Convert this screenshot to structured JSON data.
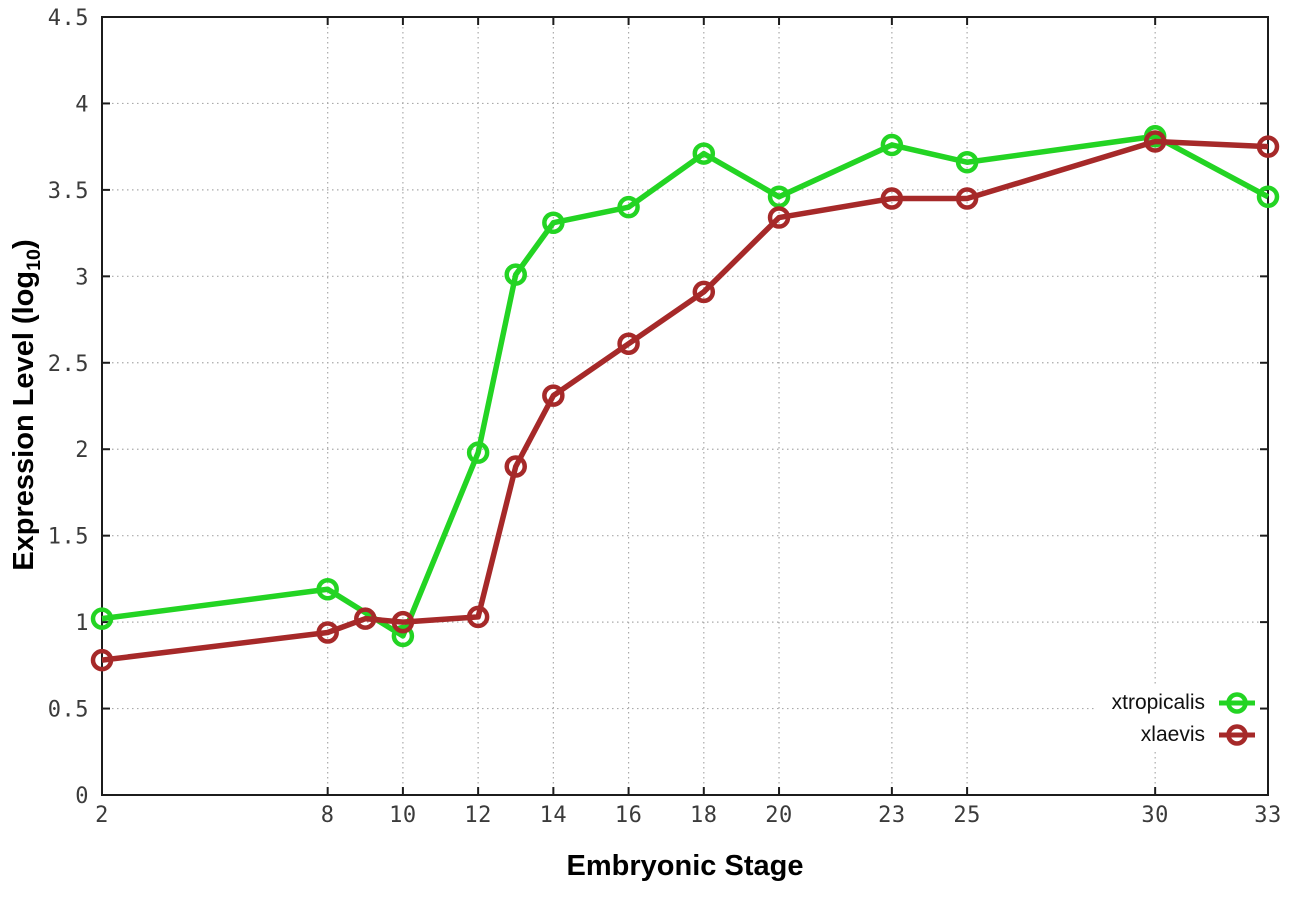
{
  "page": {
    "background": "#ffffff"
  },
  "chart_data": {
    "type": "line",
    "title": "",
    "xlabel": "Embryonic Stage",
    "ylabel": "Expression Level (log10)",
    "ylabel_parts": {
      "main": "Expression Level (log",
      "sub": "10",
      "end": ")"
    },
    "xlim": [
      2,
      33
    ],
    "ylim": [
      0,
      4.5
    ],
    "grid": {
      "visible": true,
      "style": "dotted",
      "color": "#aaaaaa"
    },
    "axis_color": "#1c1c1c",
    "tick_label_color": "#3b3b3b",
    "legend_position": "bottom-right",
    "x_ticks": [
      {
        "v": 2,
        "label": "2"
      },
      {
        "v": 8,
        "label": "8"
      },
      {
        "v": 10,
        "label": "10"
      },
      {
        "v": 12,
        "label": "12"
      },
      {
        "v": 14,
        "label": "14"
      },
      {
        "v": 16,
        "label": "16"
      },
      {
        "v": 18,
        "label": "18"
      },
      {
        "v": 20,
        "label": "20"
      },
      {
        "v": 23,
        "label": "23"
      },
      {
        "v": 25,
        "label": "25"
      },
      {
        "v": 30,
        "label": "30"
      },
      {
        "v": 33,
        "label": "33"
      }
    ],
    "y_ticks": [
      {
        "v": 0,
        "label": "0"
      },
      {
        "v": 0.5,
        "label": "0.5"
      },
      {
        "v": 1,
        "label": "1"
      },
      {
        "v": 1.5,
        "label": "1.5"
      },
      {
        "v": 2,
        "label": "2"
      },
      {
        "v": 2.5,
        "label": "2.5"
      },
      {
        "v": 3,
        "label": "3"
      },
      {
        "v": 3.5,
        "label": "3.5"
      },
      {
        "v": 4,
        "label": "4"
      },
      {
        "v": 4.5,
        "label": "4.5"
      }
    ],
    "series": [
      {
        "name": "xtropicalis",
        "color": "#23d423",
        "marker": "open-circle",
        "points": [
          [
            2,
            1.02
          ],
          [
            8,
            1.19
          ],
          [
            10,
            0.92
          ],
          [
            12,
            1.98
          ],
          [
            13,
            3.01
          ],
          [
            14,
            3.31
          ],
          [
            16,
            3.4
          ],
          [
            18,
            3.71
          ],
          [
            20,
            3.46
          ],
          [
            23,
            3.76
          ],
          [
            25,
            3.66
          ],
          [
            30,
            3.81
          ],
          [
            33,
            3.46
          ]
        ]
      },
      {
        "name": "xlaevis",
        "color": "#a62929",
        "marker": "open-circle",
        "points": [
          [
            2,
            0.78
          ],
          [
            8,
            0.94
          ],
          [
            9,
            1.02
          ],
          [
            10,
            1.0
          ],
          [
            12,
            1.03
          ],
          [
            13,
            1.9
          ],
          [
            14,
            2.31
          ],
          [
            16,
            2.61
          ],
          [
            18,
            2.91
          ],
          [
            20,
            3.34
          ],
          [
            23,
            3.45
          ],
          [
            25,
            3.45
          ],
          [
            30,
            3.78
          ],
          [
            33,
            3.75
          ]
        ]
      }
    ]
  }
}
